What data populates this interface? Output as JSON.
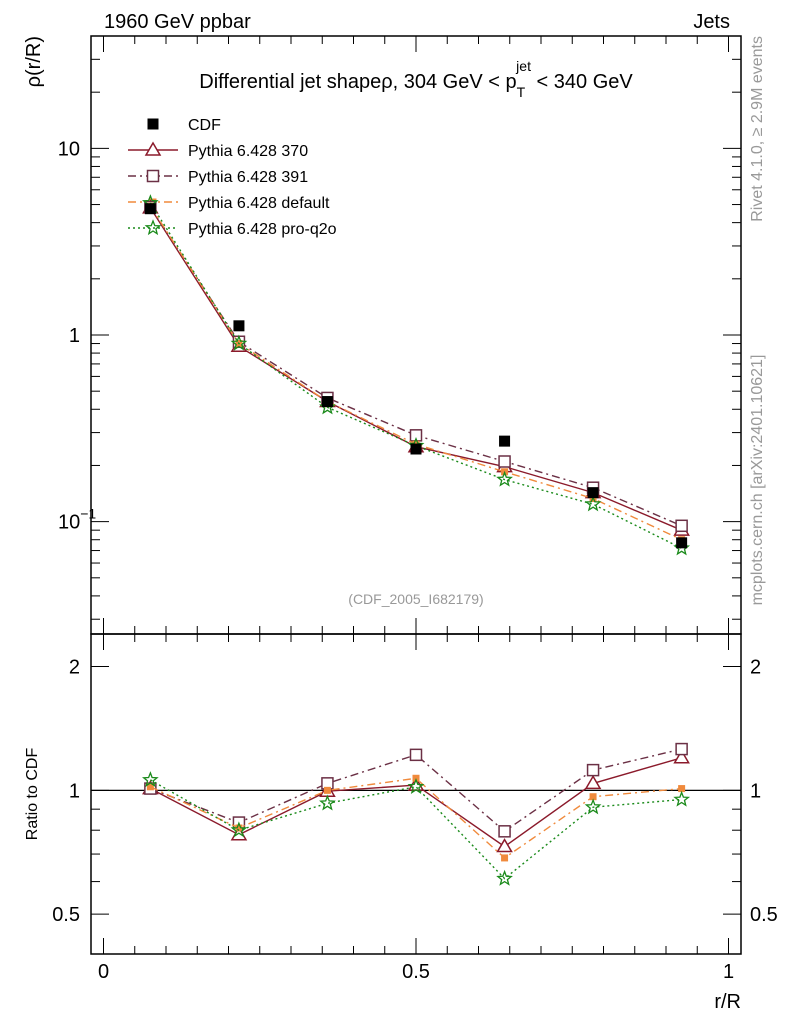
{
  "header": {
    "left_label": "1960 GeV ppbar",
    "right_label": "Jets"
  },
  "side_labels": {
    "rivet": "Rivet 4.1.0, ≥ 2.9M events",
    "mcplots": "mcplots.cern.ch [arXiv:2401.10621]"
  },
  "analysis_tag": "(CDF_2005_I682179)",
  "chart_data": [
    {
      "type": "line",
      "name": "main",
      "title": "Differential jet shapeρ, 304 GeV < p_T^jet < 340 GeV",
      "title_parts": {
        "prefix": "Differential jet shapeρ, 304 GeV < p",
        "sub": "T",
        "sup": "jet",
        "suffix": " < 340 GeV"
      },
      "ylabel": "ρ(r/R)",
      "xlabel": "r/R",
      "yscale": "log",
      "ylim": [
        0.025,
        40
      ],
      "xlim": [
        -0.02,
        1.02
      ],
      "y_tick_labels": [
        {
          "value": 10,
          "label": "10"
        },
        {
          "value": 1,
          "label": "1"
        },
        {
          "value": 0.1,
          "label": "10",
          "exp": "−1"
        }
      ],
      "x": [
        0.075,
        0.2167,
        0.3583,
        0.5,
        0.6417,
        0.7833,
        0.925
      ],
      "series": [
        {
          "name": "CDF",
          "color": "#000000",
          "marker": "square-filled",
          "line": "none",
          "values": [
            4.75,
            1.12,
            0.44,
            0.245,
            0.27,
            0.143,
            0.077
          ]
        },
        {
          "name": "Pythia 6.428 370",
          "color": "#8b1a2b",
          "marker": "triangle-open",
          "line": "solid",
          "values": [
            4.8,
            0.87,
            0.44,
            0.252,
            0.197,
            0.143,
            0.09
          ]
        },
        {
          "name": "Pythia 6.428 391",
          "color": "#6b3045",
          "marker": "square-open",
          "line": "dashdot",
          "values": [
            4.85,
            0.92,
            0.46,
            0.29,
            0.21,
            0.152,
            0.095
          ]
        },
        {
          "name": "Pythia 6.428 default",
          "color": "#f08a3c",
          "marker": "square-small-filled",
          "line": "dashdot",
          "values": [
            4.9,
            0.9,
            0.44,
            0.26,
            0.185,
            0.133,
            0.08
          ]
        },
        {
          "name": "Pythia 6.428 pro-q2o",
          "color": "#1a8a1a",
          "marker": "star",
          "line": "dotted",
          "values": [
            5.1,
            0.9,
            0.41,
            0.255,
            0.168,
            0.124,
            0.072
          ]
        }
      ]
    },
    {
      "type": "line",
      "name": "ratio",
      "ylabel": "Ratio to CDF",
      "xlabel": "r/R",
      "yscale": "log",
      "ylim": [
        0.4,
        2.4
      ],
      "xlim": [
        -0.02,
        1.02
      ],
      "y_tick_labels": [
        {
          "value": 2,
          "label": "2"
        },
        {
          "value": 1,
          "label": "1"
        },
        {
          "value": 0.5,
          "label": "0.5"
        }
      ],
      "x_tick_labels": [
        {
          "value": 0,
          "label": "0"
        },
        {
          "value": 0.5,
          "label": "0.5"
        },
        {
          "value": 1,
          "label": "1"
        }
      ],
      "x": [
        0.075,
        0.2167,
        0.3583,
        0.5,
        0.6417,
        0.7833,
        0.925
      ],
      "series": [
        {
          "name": "Pythia 6.428 370",
          "color": "#8b1a2b",
          "marker": "triangle-open",
          "line": "solid",
          "values": [
            1.01,
            0.78,
            0.995,
            1.03,
            0.73,
            1.04,
            1.2
          ]
        },
        {
          "name": "Pythia 6.428 391",
          "color": "#6b3045",
          "marker": "square-open",
          "line": "dashdot",
          "values": [
            1.01,
            0.835,
            1.04,
            1.22,
            0.795,
            1.12,
            1.26
          ]
        },
        {
          "name": "Pythia 6.428 default",
          "color": "#f08a3c",
          "marker": "square-small-filled",
          "line": "dashdot",
          "values": [
            1.02,
            0.81,
            1.0,
            1.07,
            0.685,
            0.965,
            1.01
          ]
        },
        {
          "name": "Pythia 6.428 pro-q2o",
          "color": "#1a8a1a",
          "marker": "star",
          "line": "dotted",
          "values": [
            1.06,
            0.8,
            0.93,
            1.02,
            0.61,
            0.91,
            0.95
          ]
        }
      ]
    }
  ]
}
